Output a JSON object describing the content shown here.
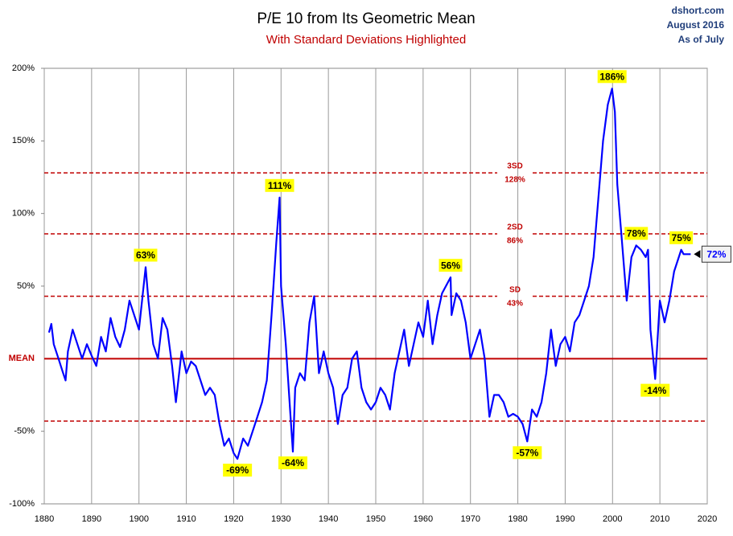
{
  "chart_data": {
    "type": "line",
    "title": "P/E 10 from Its Geometric Mean",
    "subtitle": "With Standard Deviations Highlighted",
    "source_lines": [
      "dshort.com",
      "August 2016",
      "As of July"
    ],
    "x": [
      1881,
      1881.5,
      1882,
      1883,
      1884,
      1884.5,
      1885,
      1886,
      1887,
      1888,
      1889,
      1890,
      1891,
      1892,
      1893,
      1894,
      1895,
      1896,
      1897,
      1898,
      1899,
      1900,
      1901.4,
      1902,
      1903,
      1904,
      1905,
      1906,
      1907,
      1907.8,
      1909,
      1910,
      1911,
      1912,
      1913,
      1914,
      1915,
      1916,
      1917,
      1918,
      1919,
      1920,
      1920.8,
      1922,
      1923,
      1924,
      1925,
      1926,
      1927,
      1928,
      1929,
      1929.7,
      1930,
      1931,
      1932,
      1932.5,
      1933,
      1934,
      1935,
      1936,
      1937,
      1938,
      1939,
      1940,
      1941,
      1942,
      1943,
      1944,
      1945,
      1946,
      1947,
      1948,
      1949,
      1950,
      1951,
      1952,
      1953,
      1954,
      1955,
      1956,
      1957,
      1958,
      1959,
      1960,
      1961,
      1962,
      1963,
      1964,
      1965.8,
      1966,
      1967,
      1968,
      1969,
      1970,
      1971,
      1972,
      1973,
      1974,
      1975,
      1976,
      1977,
      1978,
      1979,
      1980,
      1981,
      1982,
      1983,
      1984,
      1985,
      1986,
      1987,
      1988,
      1989,
      1990,
      1991,
      1992,
      1993,
      1994,
      1995,
      1996,
      1997,
      1998,
      1999,
      1999.9,
      2000.5,
      2001,
      2002,
      2003,
      2004,
      2005,
      2006,
      2007,
      2007.5,
      2008,
      2009,
      2010,
      2011,
      2012,
      2013,
      2014,
      2014.5,
      2015,
      2016.5
    ],
    "series": [
      {
        "name": "P/E 10",
        "color": "#0000ff",
        "values": [
          18,
          24,
          10,
          0,
          -10,
          -15,
          5,
          20,
          10,
          0,
          10,
          2,
          -5,
          15,
          5,
          28,
          15,
          8,
          20,
          40,
          30,
          20,
          63,
          40,
          10,
          0,
          28,
          20,
          -5,
          -30,
          5,
          -10,
          -2,
          -5,
          -15,
          -25,
          -20,
          -25,
          -45,
          -60,
          -55,
          -65,
          -69,
          -55,
          -60,
          -50,
          -40,
          -30,
          -15,
          30,
          80,
          111,
          50,
          10,
          -40,
          -64,
          -20,
          -10,
          -15,
          25,
          43,
          -10,
          5,
          -10,
          -20,
          -45,
          -25,
          -20,
          0,
          5,
          -20,
          -30,
          -35,
          -30,
          -20,
          -25,
          -35,
          -10,
          5,
          20,
          -5,
          10,
          25,
          15,
          40,
          10,
          30,
          45,
          56,
          30,
          45,
          40,
          25,
          0,
          10,
          20,
          0,
          -40,
          -25,
          -25,
          -30,
          -40,
          -38,
          -40,
          -45,
          -57,
          -35,
          -40,
          -30,
          -10,
          20,
          -5,
          10,
          15,
          5,
          25,
          30,
          40,
          50,
          70,
          110,
          150,
          175,
          186,
          170,
          120,
          80,
          40,
          70,
          78,
          75,
          70,
          75,
          20,
          -14,
          40,
          25,
          40,
          60,
          70,
          75,
          72,
          72
        ]
      }
    ],
    "xlim": [
      1880,
      2020
    ],
    "xticks": [
      1880,
      1890,
      1900,
      1910,
      1920,
      1930,
      1940,
      1950,
      1960,
      1970,
      1980,
      1990,
      2000,
      2010,
      2020
    ],
    "ylim": [
      -100,
      200
    ],
    "yticks": [
      {
        "value": -100,
        "label": "-100%"
      },
      {
        "value": -50,
        "label": "-50%"
      },
      {
        "value": 50,
        "label": "50%"
      },
      {
        "value": 100,
        "label": "100%"
      },
      {
        "value": 150,
        "label": "150%"
      },
      {
        "value": 200,
        "label": "200%"
      }
    ],
    "grid": "x",
    "mean_line": {
      "value": 0,
      "label": "MEAN",
      "color": "#c00000"
    },
    "sd_lines": [
      {
        "value": 128,
        "name": "3SD",
        "label": "128%"
      },
      {
        "value": 86,
        "name": "2SD",
        "label": "86%"
      },
      {
        "value": 43,
        "name": "SD",
        "label": "43%"
      },
      {
        "value": -43
      }
    ],
    "annotations": [
      {
        "x": 1901.4,
        "y": 63,
        "label": "63%"
      },
      {
        "x": 1920.8,
        "y": -69,
        "label": "-69%"
      },
      {
        "x": 1929.7,
        "y": 111,
        "label": "111%"
      },
      {
        "x": 1932.5,
        "y": -64,
        "label": "-64%"
      },
      {
        "x": 1965.8,
        "y": 56,
        "label": "56%"
      },
      {
        "x": 1982,
        "y": -57,
        "label": "-57%"
      },
      {
        "x": 1999.9,
        "y": 186,
        "label": "186%"
      },
      {
        "x": 2005,
        "y": 78,
        "label": "78%"
      },
      {
        "x": 2009,
        "y": -14,
        "label": "-14%"
      },
      {
        "x": 2014.5,
        "y": 75,
        "label": "75%"
      }
    ],
    "callout": {
      "x": 2016.5,
      "y": 72,
      "label": "72%"
    }
  }
}
